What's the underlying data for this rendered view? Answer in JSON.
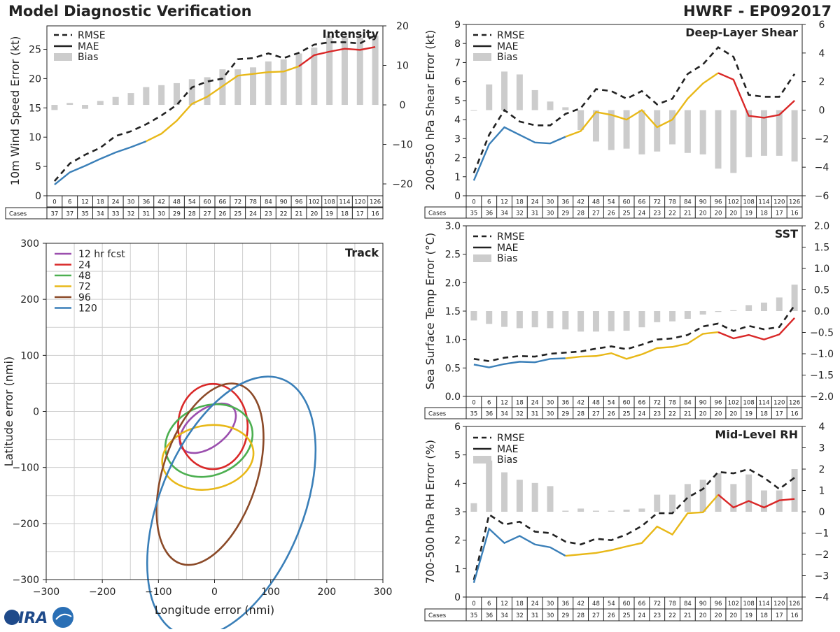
{
  "figure": {
    "title": "Model Diagnostic Verification",
    "storm": "HWRF - EP092017",
    "logo_text": "CIRA"
  },
  "legend": {
    "rmse": "RMSE",
    "mae": "MAE",
    "bias": "Bias"
  },
  "colors": {
    "blue": "#3a7fb8",
    "gold": "#e8b818",
    "red": "#d92828",
    "bias": "#cccccc",
    "purple": "#9b4fae",
    "green": "#4caf50",
    "brown": "#8b4a28"
  },
  "leads": [
    "0",
    "6",
    "12",
    "18",
    "24",
    "30",
    "36",
    "42",
    "48",
    "54",
    "60",
    "66",
    "72",
    "78",
    "84",
    "90",
    "96",
    "102",
    "108",
    "114",
    "120",
    "126"
  ],
  "chart_data": [
    {
      "id": "intensity",
      "type": "line",
      "title": "Intensity",
      "ylabel": "10m Wind Speed Error (kt)",
      "ylim": [
        0,
        29
      ],
      "y2lim": [
        -23,
        20
      ],
      "yticks": [
        0,
        5,
        10,
        15,
        20,
        25
      ],
      "y2ticks": [
        -20,
        -10,
        0,
        10,
        20
      ],
      "cases_label": "Cases",
      "cases": [
        "37",
        "37",
        "35",
        "34",
        "33",
        "32",
        "31",
        "30",
        "29",
        "28",
        "27",
        "26",
        "25",
        "24",
        "23",
        "22",
        "21",
        "20",
        "19",
        "18",
        "17",
        "16"
      ],
      "rmse": [
        2.5,
        5.5,
        7,
        8.2,
        10.2,
        11,
        12.2,
        13.7,
        15.5,
        18.5,
        19.5,
        20,
        23.3,
        23.5,
        24.3,
        23.5,
        24.4,
        25.8,
        26.2,
        26.2,
        26,
        27.4
      ],
      "mae": [
        1.9,
        4,
        5.1,
        6.3,
        7.4,
        8.3,
        9.3,
        10.6,
        12.8,
        15.7,
        16.9,
        18.7,
        20.5,
        20.8,
        21.1,
        21.2,
        22.1,
        24,
        24.6,
        25.1,
        24.9,
        25.4
      ],
      "bias": [
        -1.3,
        0.5,
        -1,
        1,
        2,
        3,
        4.5,
        5,
        5.5,
        6.5,
        7,
        9,
        9,
        9.5,
        11,
        11.5,
        13,
        14.5,
        17.5,
        17,
        17,
        17.5
      ]
    },
    {
      "id": "shear",
      "type": "line",
      "title": "Deep-Layer Shear",
      "ylabel": "200-850 hPa Shear Error (kt)",
      "ylim": [
        0,
        9
      ],
      "y2lim": [
        -6,
        6
      ],
      "yticks": [
        0,
        1,
        2,
        3,
        4,
        5,
        6,
        7,
        8,
        9
      ],
      "y2ticks": [
        -6,
        -4,
        -2,
        0,
        2,
        4,
        6
      ],
      "cases_label": "Cases",
      "cases": [
        "35",
        "36",
        "34",
        "32",
        "31",
        "30",
        "29",
        "28",
        "27",
        "26",
        "25",
        "24",
        "23",
        "22",
        "21",
        "20",
        "20",
        "20",
        "19",
        "18",
        "17",
        "16"
      ],
      "rmse": [
        1.2,
        3.2,
        4.5,
        3.9,
        3.7,
        3.7,
        4.3,
        4.6,
        5.6,
        5.5,
        5.1,
        5.5,
        4.8,
        5.1,
        6.4,
        6.9,
        7.8,
        7.3,
        5.3,
        5.2,
        5.2,
        6.4
      ],
      "mae": [
        0.8,
        2.7,
        3.6,
        3.2,
        2.8,
        2.75,
        3.1,
        3.4,
        4.4,
        4.25,
        4.0,
        4.5,
        3.6,
        4.0,
        5.1,
        5.9,
        6.45,
        6.1,
        4.2,
        4.1,
        4.25,
        5.0
      ],
      "bias": [
        0,
        1.8,
        2.7,
        2.5,
        1.4,
        0.6,
        0.2,
        -1.4,
        -2.2,
        -2.8,
        -2.7,
        -3.1,
        -2.9,
        -2.4,
        -3.0,
        -3.1,
        -4.1,
        -4.4,
        -3.3,
        -3.2,
        -3.2,
        -3.6
      ]
    },
    {
      "id": "sst",
      "type": "line",
      "title": "SST",
      "ylabel": "Sea Surface Temp Error (°C)",
      "ylim": [
        0,
        3
      ],
      "y2lim": [
        -2,
        2
      ],
      "yticks": [
        "0.0",
        "0.5",
        "1.0",
        "1.5",
        "2.0",
        "2.5",
        "3.0"
      ],
      "y2ticks": [
        "-2.0",
        "-1.5",
        "-1.0",
        "-0.5",
        "0.0",
        "0.5",
        "1.0",
        "1.5",
        "2.0"
      ],
      "cases_label": "Cases",
      "cases": [
        "35",
        "36",
        "34",
        "32",
        "31",
        "30",
        "29",
        "28",
        "27",
        "26",
        "25",
        "24",
        "23",
        "22",
        "21",
        "20",
        "20",
        "20",
        "19",
        "18",
        "17",
        "16"
      ],
      "rmse": [
        0.66,
        0.62,
        0.68,
        0.71,
        0.7,
        0.75,
        0.77,
        0.79,
        0.84,
        0.88,
        0.83,
        0.91,
        1.0,
        1.02,
        1.08,
        1.23,
        1.28,
        1.15,
        1.24,
        1.18,
        1.22,
        1.6
      ],
      "mae": [
        0.56,
        0.51,
        0.57,
        0.61,
        0.6,
        0.66,
        0.67,
        0.7,
        0.71,
        0.76,
        0.66,
        0.74,
        0.85,
        0.87,
        0.93,
        1.1,
        1.13,
        1.02,
        1.08,
        1.0,
        1.09,
        1.38
      ],
      "bias": [
        -0.22,
        -0.3,
        -0.37,
        -0.4,
        -0.38,
        -0.4,
        -0.43,
        -0.48,
        -0.48,
        -0.47,
        -0.46,
        -0.38,
        -0.26,
        -0.24,
        -0.18,
        -0.08,
        -0.02,
        0.02,
        0.14,
        0.2,
        0.32,
        0.62
      ]
    },
    {
      "id": "rh",
      "type": "line",
      "title": "Mid-Level RH",
      "ylabel": "700-500 hPa RH Error (%)",
      "ylim": [
        0,
        6
      ],
      "y2lim": [
        -4,
        4
      ],
      "yticks": [
        0,
        1,
        2,
        3,
        4,
        5,
        6
      ],
      "y2ticks": [
        -4,
        -3,
        -2,
        -1,
        0,
        1,
        2,
        3,
        4
      ],
      "cases_label": "Cases",
      "cases": [
        "35",
        "36",
        "34",
        "32",
        "31",
        "30",
        "29",
        "28",
        "27",
        "26",
        "25",
        "24",
        "23",
        "22",
        "21",
        "20",
        "20",
        "20",
        "19",
        "18",
        "17",
        "16"
      ],
      "rmse": [
        0.6,
        2.9,
        2.55,
        2.65,
        2.3,
        2.25,
        1.95,
        1.85,
        2.05,
        2.0,
        2.2,
        2.5,
        2.95,
        2.95,
        3.5,
        3.8,
        4.4,
        4.35,
        4.5,
        4.2,
        3.8,
        4.2
      ],
      "mae": [
        0.5,
        2.4,
        1.9,
        2.15,
        1.85,
        1.75,
        1.45,
        1.5,
        1.55,
        1.65,
        1.78,
        1.9,
        2.48,
        2.2,
        2.95,
        2.98,
        3.6,
        3.15,
        3.38,
        3.15,
        3.4,
        3.45
      ],
      "bias": [
        0.4,
        2.4,
        1.85,
        1.5,
        1.35,
        1.2,
        0.05,
        0.15,
        0.05,
        0.05,
        0.1,
        0.15,
        0.8,
        0.8,
        1.3,
        1.5,
        1.8,
        1.3,
        1.75,
        1.0,
        1.0,
        2.0
      ]
    },
    {
      "id": "track",
      "type": "scatter",
      "title": "Track",
      "xlabel": "Longitude error (nmi)",
      "ylabel": "Latitude error (nmi)",
      "xlim": [
        -300,
        300
      ],
      "ylim": [
        -300,
        300
      ],
      "xticks": [
        -300,
        -200,
        -100,
        0,
        100,
        200,
        300
      ],
      "yticks": [
        -300,
        -200,
        -100,
        0,
        100,
        200,
        300
      ],
      "ellipses": [
        {
          "label": "12 hr fcst",
          "color": "purple",
          "cx": -12,
          "cy": -30,
          "rx": 58,
          "ry": 33,
          "angle": -38
        },
        {
          "label": "24",
          "color": "red",
          "cx": -3,
          "cy": -27,
          "rx": 62,
          "ry": 76,
          "angle": 0
        },
        {
          "label": "48",
          "color": "green",
          "cx": -10,
          "cy": -52,
          "rx": 80,
          "ry": 62,
          "angle": -22
        },
        {
          "label": "72",
          "color": "gold",
          "cx": -12,
          "cy": -82,
          "rx": 82,
          "ry": 57,
          "angle": -10
        },
        {
          "label": "96",
          "color": "brown",
          "cx": -8,
          "cy": -112,
          "rx": 168,
          "ry": 84,
          "angle": -72
        },
        {
          "label": "120",
          "color": "blue",
          "cx": 30,
          "cy": -170,
          "rx": 245,
          "ry": 128,
          "angle": -68
        }
      ]
    }
  ]
}
